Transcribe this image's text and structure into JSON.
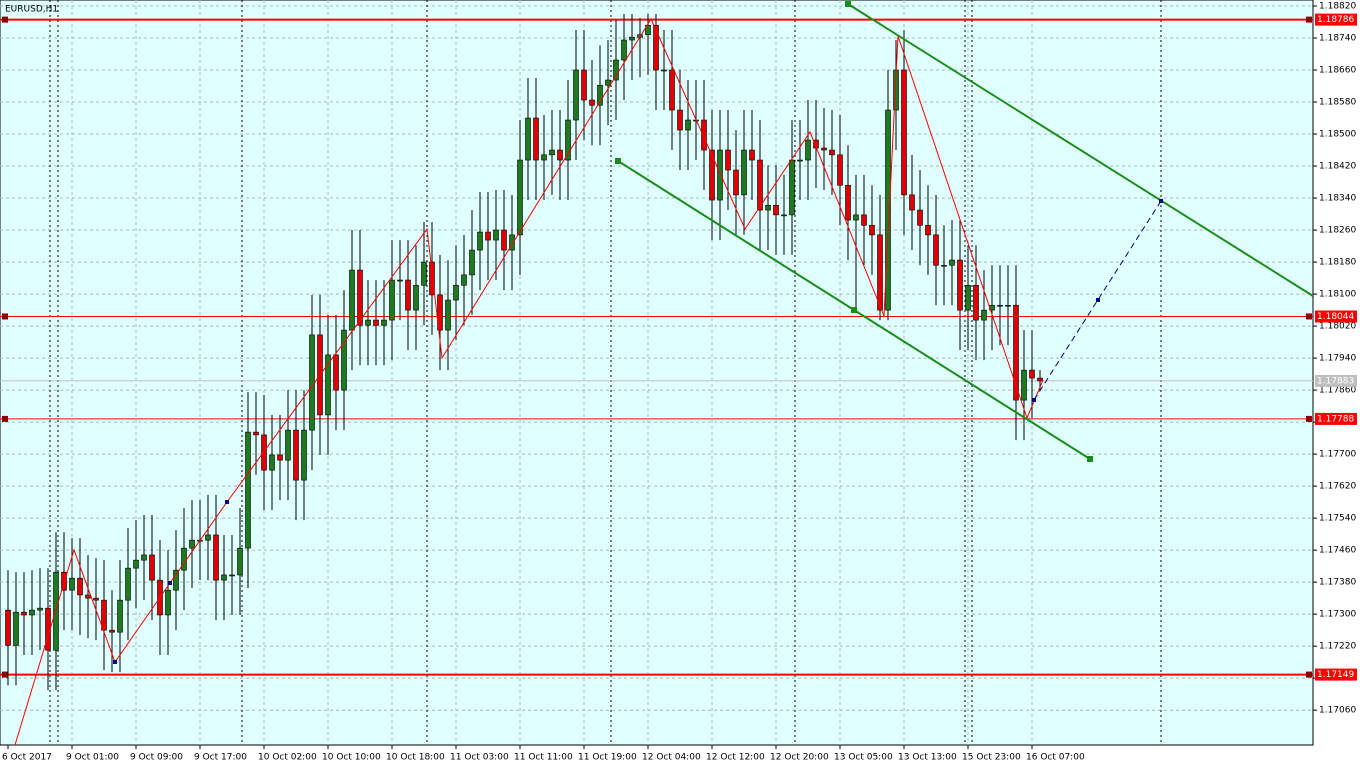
{
  "chart_data": {
    "type": "candlestick",
    "title": "EURUSD,H1",
    "up_color": "#1f7a1f",
    "down_color": "#e00000",
    "grid": true,
    "ylim": [
      1.16973,
      1.18835
    ],
    "yticks": [
      {
        "value": 1.1882,
        "label": "1.18820"
      },
      {
        "value": 1.1874,
        "label": "1.18740"
      },
      {
        "value": 1.1866,
        "label": "1.18660"
      },
      {
        "value": 1.1858,
        "label": "1.18580"
      },
      {
        "value": 1.185,
        "label": "1.18500"
      },
      {
        "value": 1.1842,
        "label": "1.18420"
      },
      {
        "value": 1.1834,
        "label": "1.18340"
      },
      {
        "value": 1.1826,
        "label": "1.18260"
      },
      {
        "value": 1.1818,
        "label": "1.18180"
      },
      {
        "value": 1.181,
        "label": "1.18100"
      },
      {
        "value": 1.1802,
        "label": "1.18020"
      },
      {
        "value": 1.1794,
        "label": "1.17940"
      },
      {
        "value": 1.1786,
        "label": "1.17860"
      },
      {
        "value": 1.1778,
        "label": "1.17780"
      },
      {
        "value": 1.177,
        "label": "1.17700"
      },
      {
        "value": 1.1762,
        "label": "1.17620"
      },
      {
        "value": 1.1754,
        "label": "1.17540"
      },
      {
        "value": 1.1746,
        "label": "1.17460"
      },
      {
        "value": 1.1738,
        "label": "1.17380"
      },
      {
        "value": 1.173,
        "label": "1.17300"
      },
      {
        "value": 1.1722,
        "label": "1.17220"
      },
      {
        "value": 1.1714,
        "label": "1.17140"
      },
      {
        "value": 1.1706,
        "label": "1.17060"
      }
    ],
    "levels": [
      {
        "value": 1.18786,
        "color": "#ff0000",
        "width": 2
      },
      {
        "value": 1.18044,
        "color": "#ff0000",
        "width": 1
      },
      {
        "value": 1.17788,
        "color": "#ff0000",
        "width": 1
      },
      {
        "value": 1.17149,
        "color": "#ff0000",
        "width": 2
      }
    ],
    "bid": 1.17883,
    "categories": [
      "6 Oct 2017",
      null,
      null,
      null,
      null,
      null,
      null,
      null,
      "9 Oct 01:00",
      null,
      null,
      null,
      null,
      null,
      null,
      null,
      "9 Oct 09:00",
      null,
      null,
      null,
      null,
      null,
      null,
      null,
      "9 Oct 17:00",
      null,
      null,
      null,
      null,
      null,
      null,
      null,
      "10 Oct 02:00",
      null,
      null,
      null,
      null,
      null,
      null,
      null,
      "10 Oct 10:00",
      null,
      null,
      null,
      null,
      null,
      null,
      null,
      "10 Oct 18:00",
      null,
      null,
      null,
      null,
      null,
      null,
      null,
      "11 Oct 03:00",
      null,
      null,
      null,
      null,
      null,
      null,
      null,
      "11 Oct 11:00",
      null,
      null,
      null,
      null,
      null,
      null,
      null,
      "11 Oct 19:00",
      null,
      null,
      null,
      null,
      null,
      null,
      null,
      "12 Oct 04:00",
      null,
      null,
      null,
      null,
      null,
      null,
      null,
      "12 Oct 12:00",
      null,
      null,
      null,
      null,
      null,
      null,
      null,
      "12 Oct 20:00",
      null,
      null,
      null,
      null,
      null,
      null,
      null,
      "13 Oct 05:00",
      null,
      null,
      null,
      null,
      null,
      null,
      null,
      "13 Oct 13:00",
      null,
      null,
      null,
      null,
      null,
      null,
      null,
      "15 Oct 23:00",
      null,
      null,
      null,
      null,
      null,
      null,
      null,
      "16 Oct 07:00",
      null
    ],
    "candles": [
      [
        1.1731,
        1.1741,
        1.17122,
        1.17222
      ],
      [
        1.17222,
        1.17405,
        1.17122,
        1.17305
      ],
      [
        1.17305,
        1.17405,
        1.17198,
        1.17298
      ],
      [
        1.17298,
        1.1741,
        1.17198,
        1.1731
      ],
      [
        1.1731,
        1.17415,
        1.1721,
        1.17315
      ],
      [
        1.17315,
        1.17415,
        1.1711,
        1.1721
      ],
      [
        1.1721,
        1.17505,
        1.1711,
        1.17405
      ],
      [
        1.17405,
        1.17505,
        1.1726,
        1.1736
      ],
      [
        1.1736,
        1.1749,
        1.1726,
        1.1739
      ],
      [
        1.1739,
        1.1749,
        1.17248,
        1.17348
      ],
      [
        1.17348,
        1.17448,
        1.1724,
        1.1734
      ],
      [
        1.1734,
        1.1744,
        1.17235,
        1.17335
      ],
      [
        1.17335,
        1.17435,
        1.1716,
        1.1726
      ],
      [
        1.1726,
        1.1736,
        1.17155,
        1.17255
      ],
      [
        1.17255,
        1.17435,
        1.17155,
        1.17335
      ],
      [
        1.17335,
        1.17515,
        1.17235,
        1.17415
      ],
      [
        1.17415,
        1.17535,
        1.17315,
        1.17435
      ],
      [
        1.17435,
        1.17548,
        1.17335,
        1.17448
      ],
      [
        1.17448,
        1.17548,
        1.17285,
        1.17385
      ],
      [
        1.17385,
        1.17485,
        1.17198,
        1.17298
      ],
      [
        1.17298,
        1.1746,
        1.17198,
        1.1736
      ],
      [
        1.1736,
        1.1751,
        1.1726,
        1.1741
      ],
      [
        1.1741,
        1.17565,
        1.1731,
        1.17465
      ],
      [
        1.17465,
        1.17585,
        1.17365,
        1.17485
      ],
      [
        1.17485,
        1.17585,
        1.17385,
        1.17485
      ],
      [
        1.17485,
        1.17598,
        1.17385,
        1.17498
      ],
      [
        1.17498,
        1.17598,
        1.17285,
        1.17385
      ],
      [
        1.17385,
        1.17498,
        1.17285,
        1.17398
      ],
      [
        1.17398,
        1.17498,
        1.17298,
        1.17398
      ],
      [
        1.17398,
        1.17565,
        1.17298,
        1.17465
      ],
      [
        1.17465,
        1.17855,
        1.17365,
        1.17755
      ],
      [
        1.17755,
        1.17855,
        1.17648,
        1.17748
      ],
      [
        1.17748,
        1.17848,
        1.1756,
        1.1766
      ],
      [
        1.1766,
        1.17798,
        1.1756,
        1.17698
      ],
      [
        1.17698,
        1.17798,
        1.17585,
        1.17685
      ],
      [
        1.17685,
        1.1786,
        1.17585,
        1.1776
      ],
      [
        1.1776,
        1.1786,
        1.17535,
        1.17635
      ],
      [
        1.17635,
        1.1786,
        1.17535,
        1.1776
      ],
      [
        1.1776,
        1.18098,
        1.1766,
        1.17998
      ],
      [
        1.17998,
        1.18098,
        1.17698,
        1.17798
      ],
      [
        1.17798,
        1.18048,
        1.17698,
        1.17948
      ],
      [
        1.17948,
        1.18048,
        1.1776,
        1.1786
      ],
      [
        1.1786,
        1.1811,
        1.1776,
        1.1801
      ],
      [
        1.1801,
        1.1826,
        1.1791,
        1.1816
      ],
      [
        1.1816,
        1.1826,
        1.17922,
        1.18022
      ],
      [
        1.18022,
        1.18135,
        1.17922,
        1.18035
      ],
      [
        1.18035,
        1.18135,
        1.17922,
        1.18022
      ],
      [
        1.18022,
        1.18135,
        1.17922,
        1.18035
      ],
      [
        1.18035,
        1.18235,
        1.17935,
        1.18135
      ],
      [
        1.18135,
        1.18235,
        1.18035,
        1.18135
      ],
      [
        1.18135,
        1.18235,
        1.1796,
        1.1806
      ],
      [
        1.1806,
        1.18222,
        1.1796,
        1.18122
      ],
      [
        1.18122,
        1.1828,
        1.18022,
        1.1818
      ],
      [
        1.1818,
        1.1828,
        1.17998,
        1.18098
      ],
      [
        1.18098,
        1.18198,
        1.1791,
        1.1801
      ],
      [
        1.1801,
        1.18185,
        1.1791,
        1.18085
      ],
      [
        1.18085,
        1.18222,
        1.17985,
        1.18122
      ],
      [
        1.18122,
        1.18248,
        1.18022,
        1.18148
      ],
      [
        1.18148,
        1.1831,
        1.18048,
        1.1821
      ],
      [
        1.1821,
        1.18355,
        1.1811,
        1.18255
      ],
      [
        1.18255,
        1.18355,
        1.18135,
        1.18235
      ],
      [
        1.18235,
        1.1836,
        1.18135,
        1.1826
      ],
      [
        1.1826,
        1.1836,
        1.1811,
        1.1821
      ],
      [
        1.1821,
        1.18348,
        1.1811,
        1.18248
      ],
      [
        1.18248,
        1.18535,
        1.18148,
        1.18435
      ],
      [
        1.18435,
        1.1864,
        1.18335,
        1.1854
      ],
      [
        1.1854,
        1.1864,
        1.18335,
        1.18435
      ],
      [
        1.18435,
        1.18548,
        1.18335,
        1.18448
      ],
      [
        1.18448,
        1.1856,
        1.18348,
        1.1846
      ],
      [
        1.1846,
        1.1856,
        1.18335,
        1.18435
      ],
      [
        1.18435,
        1.18635,
        1.18335,
        1.18535
      ],
      [
        1.18535,
        1.1876,
        1.18435,
        1.1866
      ],
      [
        1.1866,
        1.1876,
        1.18485,
        1.18585
      ],
      [
        1.18585,
        1.18685,
        1.18472,
        1.18572
      ],
      [
        1.18572,
        1.18722,
        1.18472,
        1.18622
      ],
      [
        1.18622,
        1.18735,
        1.18522,
        1.18635
      ],
      [
        1.18635,
        1.18785,
        1.18535,
        1.18685
      ],
      [
        1.18685,
        1.188,
        1.18585,
        1.18735
      ],
      [
        1.18735,
        1.188,
        1.18635,
        1.18742
      ],
      [
        1.18742,
        1.1879,
        1.18642,
        1.18748
      ],
      [
        1.18748,
        1.188,
        1.18648,
        1.18772
      ],
      [
        1.18772,
        1.188,
        1.1856,
        1.1866
      ],
      [
        1.1866,
        1.1876,
        1.1856,
        1.1866
      ],
      [
        1.1866,
        1.1876,
        1.1846,
        1.1856
      ],
      [
        1.1856,
        1.1866,
        1.1841,
        1.1851
      ],
      [
        1.1851,
        1.18635,
        1.1841,
        1.18535
      ],
      [
        1.18535,
        1.18635,
        1.18435,
        1.18535
      ],
      [
        1.18535,
        1.18635,
        1.1836,
        1.1846
      ],
      [
        1.1846,
        1.1856,
        1.18235,
        1.18335
      ],
      [
        1.18335,
        1.1856,
        1.18235,
        1.1846
      ],
      [
        1.1846,
        1.1856,
        1.1831,
        1.1841
      ],
      [
        1.1841,
        1.1851,
        1.18248,
        1.18348
      ],
      [
        1.18348,
        1.1856,
        1.18248,
        1.1846
      ],
      [
        1.1846,
        1.1856,
        1.18335,
        1.18435
      ],
      [
        1.18435,
        1.18535,
        1.1821,
        1.1831
      ],
      [
        1.1831,
        1.18422,
        1.1821,
        1.18322
      ],
      [
        1.18322,
        1.18422,
        1.18198,
        1.18298
      ],
      [
        1.18298,
        1.18398,
        1.18198,
        1.18298
      ],
      [
        1.18298,
        1.18535,
        1.18198,
        1.18435
      ],
      [
        1.18435,
        1.18535,
        1.18335,
        1.18435
      ],
      [
        1.18435,
        1.18585,
        1.18335,
        1.18485
      ],
      [
        1.18485,
        1.18585,
        1.18365,
        1.18465
      ],
      [
        1.18465,
        1.18565,
        1.1836,
        1.1846
      ],
      [
        1.1846,
        1.1856,
        1.18348,
        1.18448
      ],
      [
        1.18448,
        1.18548,
        1.18272,
        1.18372
      ],
      [
        1.18372,
        1.18472,
        1.18185,
        1.18285
      ],
      [
        1.18285,
        1.18398,
        1.1806,
        1.18298
      ],
      [
        1.18298,
        1.18398,
        1.18172,
        1.18272
      ],
      [
        1.18272,
        1.18372,
        1.18148,
        1.18248
      ],
      [
        1.18248,
        1.18348,
        1.18035,
        1.1806
      ],
      [
        1.1806,
        1.1866,
        1.18035,
        1.1856
      ],
      [
        1.1856,
        1.18735,
        1.1846,
        1.1866
      ],
      [
        1.1866,
        1.1876,
        1.18248,
        1.18348
      ],
      [
        1.18348,
        1.18448,
        1.1821,
        1.1831
      ],
      [
        1.1831,
        1.1841,
        1.18172,
        1.18272
      ],
      [
        1.18272,
        1.18372,
        1.18148,
        1.18248
      ],
      [
        1.18248,
        1.18348,
        1.18072,
        1.18172
      ],
      [
        1.18172,
        1.18272,
        1.18072,
        1.18172
      ],
      [
        1.18172,
        1.18285,
        1.18072,
        1.18185
      ],
      [
        1.18185,
        1.18285,
        1.1796,
        1.1806
      ],
      [
        1.1806,
        1.18222,
        1.1796,
        1.18122
      ],
      [
        1.18122,
        1.18222,
        1.17935,
        1.18035
      ],
      [
        1.18035,
        1.1816,
        1.17935,
        1.1806
      ],
      [
        1.1806,
        1.18172,
        1.1796,
        1.18072
      ],
      [
        1.18072,
        1.18172,
        1.17972,
        1.18072
      ],
      [
        1.18072,
        1.18172,
        1.17972,
        1.18072
      ],
      [
        1.18072,
        1.18172,
        1.17735,
        1.17835
      ],
      [
        1.17835,
        1.1801,
        1.17735,
        1.1791
      ],
      [
        1.1791,
        1.1801,
        1.1779,
        1.1789
      ],
      [
        1.1789,
        1.1791,
        1.1786,
        1.17883
      ]
    ]
  }
}
